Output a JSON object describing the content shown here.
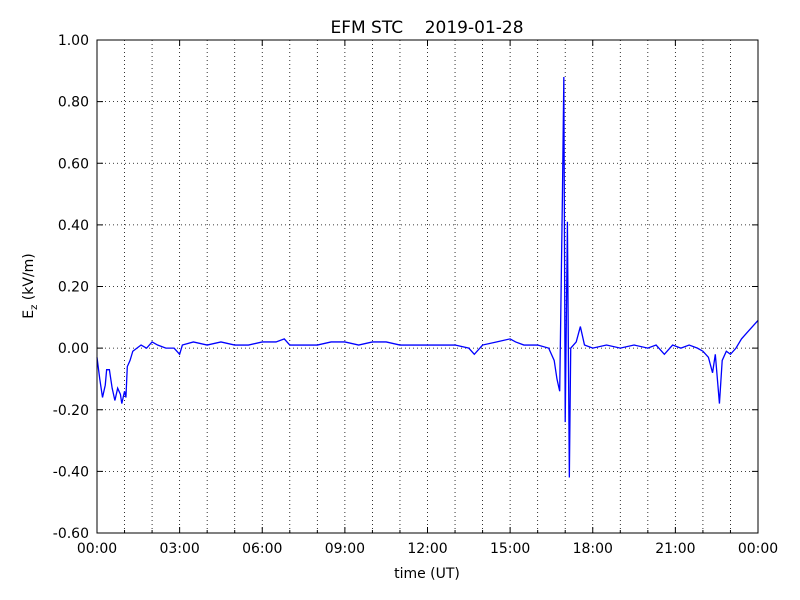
{
  "chart_data": {
    "type": "line",
    "title": "EFM STC    2019-01-28",
    "xlabel": "time (UT)",
    "ylabel": {
      "main": "E",
      "sub": "z",
      "unit": " (kV/m)"
    },
    "x": [
      0.0,
      0.1,
      0.2,
      0.3,
      0.35,
      0.45,
      0.55,
      0.65,
      0.75,
      0.85,
      0.9,
      1.0,
      1.05,
      1.1,
      1.2,
      1.3,
      1.45,
      1.6,
      1.8,
      2.0,
      2.2,
      2.5,
      2.8,
      3.0,
      3.1,
      3.5,
      4.0,
      4.5,
      5.0,
      5.5,
      6.0,
      6.5,
      6.8,
      7.0,
      7.5,
      8.0,
      8.5,
      9.0,
      9.5,
      10.0,
      10.5,
      11.0,
      11.5,
      12.0,
      12.5,
      13.0,
      13.5,
      13.7,
      14.0,
      14.5,
      15.0,
      15.2,
      15.5,
      16.0,
      16.4,
      16.6,
      16.7,
      16.8,
      16.9,
      16.95,
      17.0,
      17.08,
      17.15,
      17.2,
      17.4,
      17.55,
      17.7,
      18.0,
      18.5,
      19.0,
      19.5,
      20.0,
      20.3,
      20.6,
      20.9,
      21.2,
      21.5,
      21.8,
      22.0,
      22.2,
      22.35,
      22.45,
      22.6,
      22.7,
      22.85,
      23.0,
      23.2,
      23.4,
      23.6,
      23.8,
      24.0
    ],
    "series": [
      {
        "name": "Ez",
        "color": "#0000ff",
        "values": [
          -0.03,
          -0.1,
          -0.16,
          -0.12,
          -0.07,
          -0.07,
          -0.13,
          -0.17,
          -0.13,
          -0.15,
          -0.18,
          -0.14,
          -0.16,
          -0.06,
          -0.04,
          -0.01,
          0.0,
          0.01,
          0.0,
          0.02,
          0.01,
          0.0,
          0.0,
          -0.02,
          0.01,
          0.02,
          0.01,
          0.02,
          0.01,
          0.01,
          0.02,
          0.02,
          0.03,
          0.01,
          0.01,
          0.01,
          0.02,
          0.02,
          0.01,
          0.02,
          0.02,
          0.01,
          0.01,
          0.01,
          0.01,
          0.01,
          0.0,
          -0.02,
          0.01,
          0.02,
          0.03,
          0.02,
          0.01,
          0.01,
          0.0,
          -0.04,
          -0.1,
          -0.14,
          0.5,
          0.88,
          -0.24,
          0.41,
          -0.42,
          0.0,
          0.02,
          0.07,
          0.01,
          0.0,
          0.01,
          0.0,
          0.01,
          0.0,
          0.01,
          -0.02,
          0.01,
          0.0,
          0.01,
          0.0,
          -0.01,
          -0.03,
          -0.08,
          -0.02,
          -0.18,
          -0.04,
          -0.01,
          -0.02,
          0.0,
          0.03,
          0.05,
          0.07,
          0.09
        ]
      }
    ],
    "xlim": [
      0,
      24
    ],
    "xticks": [
      {
        "value": 0,
        "label": "00:00"
      },
      {
        "value": 3,
        "label": "03:00"
      },
      {
        "value": 6,
        "label": "06:00"
      },
      {
        "value": 9,
        "label": "09:00"
      },
      {
        "value": 12,
        "label": "12:00"
      },
      {
        "value": 15,
        "label": "15:00"
      },
      {
        "value": 18,
        "label": "18:00"
      },
      {
        "value": 21,
        "label": "21:00"
      },
      {
        "value": 24,
        "label": "00:00"
      }
    ],
    "xminorticks": [
      1,
      2,
      4,
      5,
      7,
      8,
      10,
      11,
      13,
      14,
      16,
      17,
      19,
      20,
      22,
      23
    ],
    "ylim": [
      -0.6,
      1.0
    ],
    "yticks": [
      {
        "value": -0.6,
        "label": "-0.60"
      },
      {
        "value": -0.4,
        "label": "-0.40"
      },
      {
        "value": -0.2,
        "label": "-0.20"
      },
      {
        "value": 0,
        "label": "0.00"
      },
      {
        "value": 0.2,
        "label": "0.20"
      },
      {
        "value": 0.4,
        "label": "0.40"
      },
      {
        "value": 0.6,
        "label": "0.60"
      },
      {
        "value": 0.8,
        "label": "0.80"
      },
      {
        "value": 1.0,
        "label": "1.00"
      }
    ],
    "grid": true
  }
}
